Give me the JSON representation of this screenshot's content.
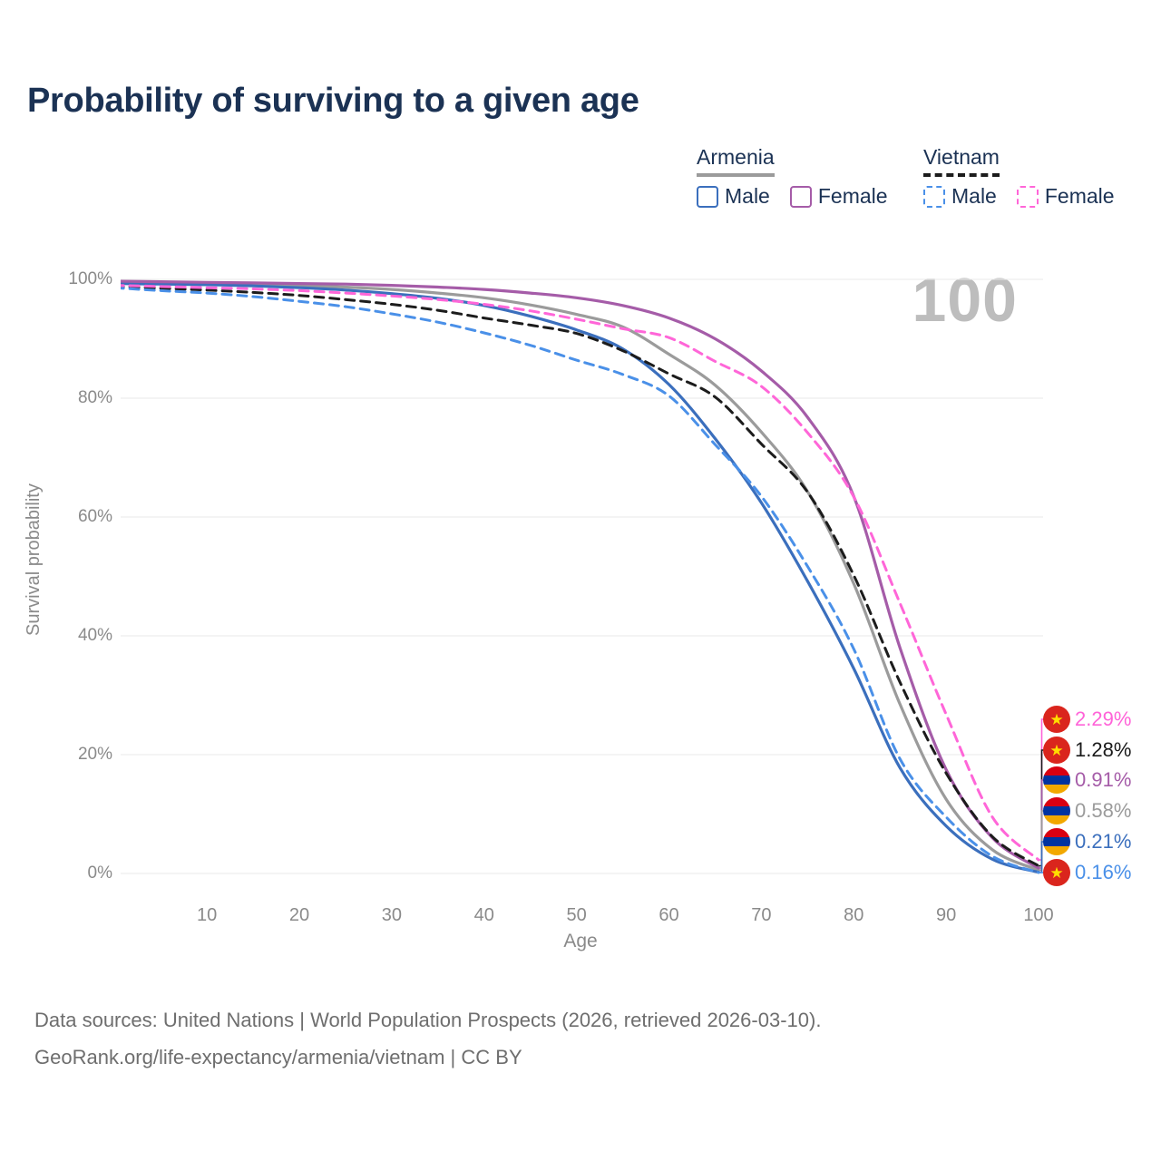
{
  "page": {
    "title": "Probability of surviving to a given age"
  },
  "legend": {
    "armenia": {
      "title": "Armenia",
      "male": "Male",
      "female": "Female"
    },
    "vietnam": {
      "title": "Vietnam",
      "male": "Male",
      "female": "Female"
    }
  },
  "watermark": "100",
  "axes": {
    "x_label": "Age",
    "y_label": "Survival probability",
    "x_ticks": [
      "10",
      "20",
      "30",
      "40",
      "50",
      "60",
      "70",
      "80",
      "90",
      "100"
    ],
    "y_ticks": [
      "0%",
      "20%",
      "40%",
      "60%",
      "80%",
      "100%"
    ]
  },
  "end_labels": [
    {
      "text": "2.29%",
      "series": "Vietnam Female",
      "flag": "vietnam",
      "color": "#ff63d8"
    },
    {
      "text": "1.28%",
      "series": "Vietnam",
      "flag": "vietnam",
      "color": "#1a1a1a"
    },
    {
      "text": "0.91%",
      "series": "Armenia Female",
      "flag": "armenia",
      "color": "#a55ca8"
    },
    {
      "text": "0.58%",
      "series": "Armenia",
      "flag": "armenia",
      "color": "#9b9b9b"
    },
    {
      "text": "0.21%",
      "series": "Armenia Male",
      "flag": "armenia",
      "color": "#3b6fbd"
    },
    {
      "text": "0.16%",
      "series": "Vietnam Male",
      "flag": "vietnam",
      "color": "#4a90e8"
    }
  ],
  "chart_data": {
    "type": "line",
    "title": "Probability of surviving to a given age",
    "xlabel": "Age",
    "ylabel": "Survival probability",
    "y_unit": "%",
    "xlim": [
      0,
      100
    ],
    "ylim": [
      0,
      100
    ],
    "grid": "horizontal",
    "legend_position": "top-right",
    "x": [
      0,
      5,
      10,
      15,
      20,
      25,
      30,
      35,
      40,
      45,
      50,
      55,
      60,
      65,
      70,
      75,
      80,
      85,
      90,
      95,
      100
    ],
    "series": [
      {
        "name": "Armenia",
        "country": "Armenia",
        "sex": "both",
        "color": "#9b9b9b",
        "dash": false,
        "values": [
          99.5,
          99.4,
          99.3,
          99.2,
          99.0,
          98.7,
          98.3,
          97.7,
          96.9,
          95.7,
          94.1,
          92.0,
          87.4,
          82.2,
          74.3,
          64.3,
          48.8,
          28.5,
          12.5,
          4.0,
          0.58
        ]
      },
      {
        "name": "Armenia Male",
        "country": "Armenia",
        "sex": "male",
        "color": "#3b6fbd",
        "dash": false,
        "values": [
          99.3,
          99.2,
          99.1,
          98.9,
          98.6,
          98.2,
          97.6,
          96.8,
          95.6,
          93.8,
          91.5,
          88.3,
          82.3,
          73.2,
          62.4,
          49.2,
          34.5,
          17.8,
          8.0,
          2.4,
          0.21
        ]
      },
      {
        "name": "Armenia Female",
        "country": "Armenia",
        "sex": "female",
        "color": "#a55ca8",
        "dash": false,
        "values": [
          99.7,
          99.6,
          99.5,
          99.4,
          99.3,
          99.2,
          99.0,
          98.7,
          98.3,
          97.7,
          96.9,
          95.6,
          93.5,
          90.0,
          84.6,
          76.8,
          63.5,
          38.0,
          17.5,
          6.0,
          0.91
        ]
      },
      {
        "name": "Vietnam",
        "country": "Vietnam",
        "sex": "both",
        "color": "#1c1c1c",
        "dash": true,
        "values": [
          98.9,
          98.5,
          98.2,
          97.8,
          97.3,
          96.6,
          95.8,
          94.8,
          93.5,
          92.3,
          90.9,
          88.0,
          84.1,
          80.2,
          72.3,
          64.2,
          50.2,
          32.2,
          16.9,
          6.2,
          1.28
        ]
      },
      {
        "name": "Vietnam Male",
        "country": "Vietnam",
        "sex": "male",
        "color": "#4a90e8",
        "dash": true,
        "values": [
          98.6,
          98.1,
          97.7,
          97.1,
          96.3,
          95.4,
          94.2,
          92.8,
          91.0,
          88.9,
          86.4,
          84.0,
          80.4,
          72.2,
          63.5,
          51.7,
          37.8,
          19.3,
          9.5,
          2.9,
          0.16
        ]
      },
      {
        "name": "Vietnam Female",
        "country": "Vietnam",
        "sex": "female",
        "color": "#ff66d8",
        "dash": true,
        "values": [
          99.0,
          98.8,
          98.6,
          98.4,
          98.1,
          97.7,
          97.2,
          96.6,
          95.8,
          94.7,
          93.3,
          91.7,
          90.2,
          86.2,
          82.0,
          74.2,
          63.4,
          45.5,
          26.8,
          9.5,
          2.29
        ]
      }
    ]
  },
  "footer": {
    "line1": "Data sources: United Nations | World Population Prospects (2026, retrieved 2026-03-10).",
    "line2": "GeoRank.org/life-expectancy/armenia/vietnam | CC BY"
  }
}
